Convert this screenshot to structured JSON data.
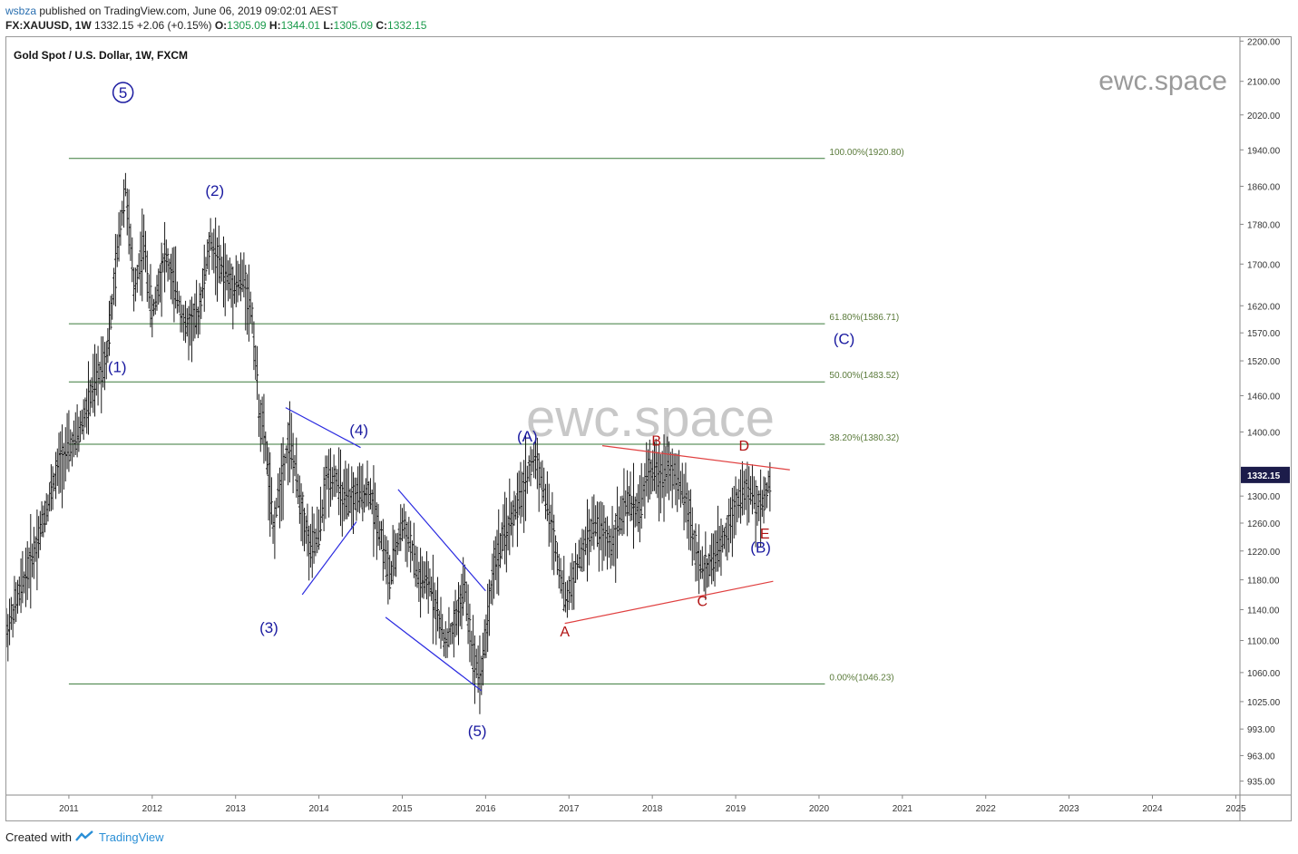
{
  "header": {
    "publisher": "wsbza",
    "published_text": "published on TradingView.com, June 06, 2019 09:02:01 AEST",
    "symbol": "FX:XAUUSD, 1W",
    "last": "1332.15",
    "change": "+2.06 (+0.15%)",
    "o_label": "O:",
    "o_value": "1305.09",
    "h_label": "H:",
    "h_value": "1344.01",
    "l_label": "L:",
    "l_value": "1305.09",
    "c_label": "C:",
    "c_value": "1332.15"
  },
  "footer": {
    "created_with": "Created with",
    "brand": "TradingView"
  },
  "colors": {
    "candles": "#1a1a1a",
    "fib_lines": "#3a7a3a",
    "fib_text": "#5a7a3a",
    "wave_labels": "#1a1aa0",
    "triangle_labels": "#b01010",
    "channel_blue": "#2b2be0",
    "triangle_red": "#e04040",
    "watermark": "#c8c8c8",
    "price_badge_bg": "#1c1c4a"
  },
  "chart_data": {
    "type": "candlestick",
    "title": "Gold Spot / U.S. Dollar, 1W, FXCM",
    "watermark": "ewc.space",
    "log_scale": true,
    "ylim": [
      920,
      2210
    ],
    "xlim": [
      2010.25,
      2025.05
    ],
    "x_ticks": [
      "2011",
      "2012",
      "2013",
      "2014",
      "2015",
      "2016",
      "2017",
      "2018",
      "2019",
      "2020",
      "2021",
      "2022",
      "2023",
      "2024",
      "2025"
    ],
    "y_ticks": [
      "2200.00",
      "2100.00",
      "2020.00",
      "1940.00",
      "1860.00",
      "1780.00",
      "1700.00",
      "1620.00",
      "1570.00",
      "1520.00",
      "1460.00",
      "1400.00",
      "1300.00",
      "1260.00",
      "1220.00",
      "1180.00",
      "1140.00",
      "1100.00",
      "1060.00",
      "1025.00",
      "993.00",
      "963.00",
      "935.00"
    ],
    "last_price": "1332.15",
    "series": [
      {
        "name": "XAUUSD weekly close (approx.)",
        "x": [
          2010.25,
          2010.6,
          2010.9,
          2011.1,
          2011.35,
          2011.45,
          2011.52,
          2011.62,
          2011.68,
          2011.78,
          2011.9,
          2012.0,
          2012.15,
          2012.3,
          2012.4,
          2012.55,
          2012.7,
          2012.8,
          2012.95,
          2013.1,
          2013.2,
          2013.28,
          2013.36,
          2013.45,
          2013.55,
          2013.65,
          2013.75,
          2013.9,
          2014.0,
          2014.1,
          2014.2,
          2014.3,
          2014.45,
          2014.6,
          2014.75,
          2014.85,
          2015.0,
          2015.1,
          2015.2,
          2015.35,
          2015.5,
          2015.6,
          2015.75,
          2015.85,
          2015.95,
          2016.1,
          2016.25,
          2016.4,
          2016.52,
          2016.6,
          2016.7,
          2016.8,
          2016.96,
          2017.1,
          2017.3,
          2017.5,
          2017.7,
          2017.85,
          2017.95,
          2018.1,
          2018.2,
          2018.3,
          2018.4,
          2018.5,
          2018.62,
          2018.75,
          2018.9,
          2019.0,
          2019.1,
          2019.2,
          2019.3,
          2019.43
        ],
        "y": [
          1110,
          1225,
          1355,
          1390,
          1495,
          1530,
          1620,
          1780,
          1860,
          1650,
          1740,
          1600,
          1720,
          1640,
          1580,
          1600,
          1745,
          1700,
          1660,
          1670,
          1600,
          1440,
          1380,
          1250,
          1330,
          1390,
          1310,
          1220,
          1245,
          1330,
          1330,
          1290,
          1300,
          1310,
          1240,
          1180,
          1260,
          1230,
          1180,
          1170,
          1100,
          1110,
          1170,
          1080,
          1060,
          1200,
          1250,
          1290,
          1340,
          1360,
          1310,
          1250,
          1150,
          1200,
          1260,
          1230,
          1290,
          1280,
          1340,
          1330,
          1350,
          1320,
          1300,
          1230,
          1190,
          1210,
          1250,
          1290,
          1310,
          1300,
          1280,
          1332
        ]
      }
    ],
    "fib_levels": [
      {
        "label": "100.00%(1920.80)",
        "value": 1920.8
      },
      {
        "label": "61.80%(1586.71)",
        "value": 1586.71
      },
      {
        "label": "50.00%(1483.52)",
        "value": 1483.52
      },
      {
        "label": "38.20%(1380.32)",
        "value": 1380.32
      },
      {
        "label": "0.00%(1046.23)",
        "value": 1046.23
      }
    ],
    "wave_labels": [
      {
        "text": "5",
        "x": 2011.65,
        "y": 2060,
        "circled": true
      },
      {
        "text": "(1)",
        "x": 2011.58,
        "y": 1500
      },
      {
        "text": "(2)",
        "x": 2012.75,
        "y": 1840
      },
      {
        "text": "(3)",
        "x": 2013.4,
        "y": 1110
      },
      {
        "text": "(4)",
        "x": 2014.48,
        "y": 1395
      },
      {
        "text": "(5)",
        "x": 2015.9,
        "y": 985
      },
      {
        "text": "(A)",
        "x": 2016.5,
        "y": 1385
      },
      {
        "text": "(B)",
        "x": 2019.3,
        "y": 1218
      },
      {
        "text": "(C)",
        "x": 2020.3,
        "y": 1550
      }
    ],
    "triangle_labels": [
      {
        "text": "A",
        "x": 2016.95,
        "y": 1105
      },
      {
        "text": "B",
        "x": 2018.05,
        "y": 1378
      },
      {
        "text": "C",
        "x": 2018.6,
        "y": 1145
      },
      {
        "text": "D",
        "x": 2019.1,
        "y": 1370
      },
      {
        "text": "E",
        "x": 2019.35,
        "y": 1238
      }
    ]
  }
}
